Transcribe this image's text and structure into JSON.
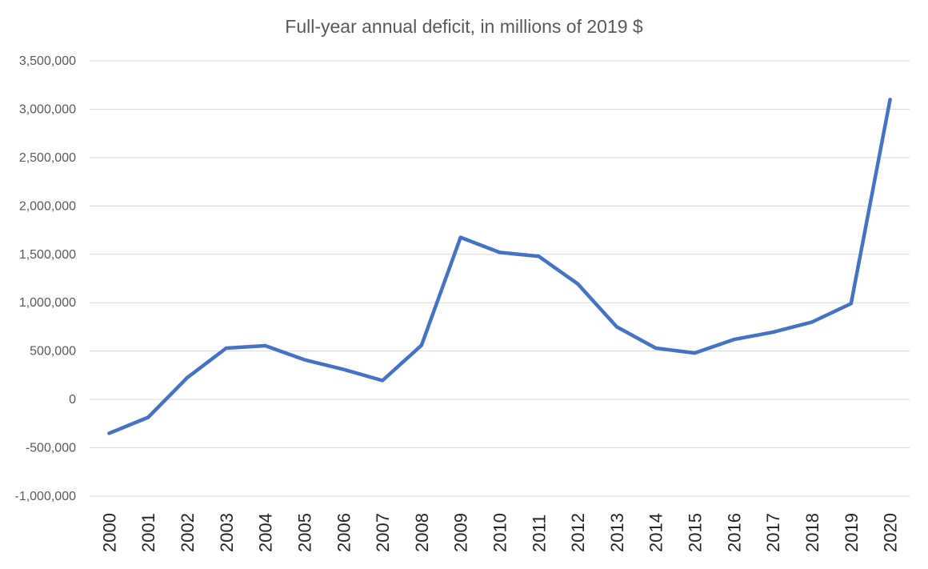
{
  "chart_data": {
    "type": "line",
    "title": "Full-year annual deficit, in millions of 2019 $",
    "xlabel": "",
    "ylabel": "",
    "categories": [
      "2000",
      "2001",
      "2002",
      "2003",
      "2004",
      "2005",
      "2006",
      "2007",
      "2008",
      "2009",
      "2010",
      "2011",
      "2012",
      "2013",
      "2014",
      "2015",
      "2016",
      "2017",
      "2018",
      "2019",
      "2020"
    ],
    "series": [
      {
        "values": [
          -350000,
          -185000,
          225000,
          530000,
          555000,
          410000,
          310000,
          195000,
          560000,
          1675000,
          1520000,
          1480000,
          1195000,
          750000,
          530000,
          480000,
          620000,
          695000,
          800000,
          990000,
          3100000
        ],
        "color": "#4472c4"
      }
    ],
    "ylim": [
      -1000000,
      3500000
    ],
    "yticks": [
      "-1,000,000",
      "-500,000",
      "0",
      "500,000",
      "1,000,000",
      "1,500,000",
      "2,000,000",
      "2,500,000",
      "3,000,000",
      "3,500,000"
    ],
    "grid": true,
    "legend": "none"
  }
}
